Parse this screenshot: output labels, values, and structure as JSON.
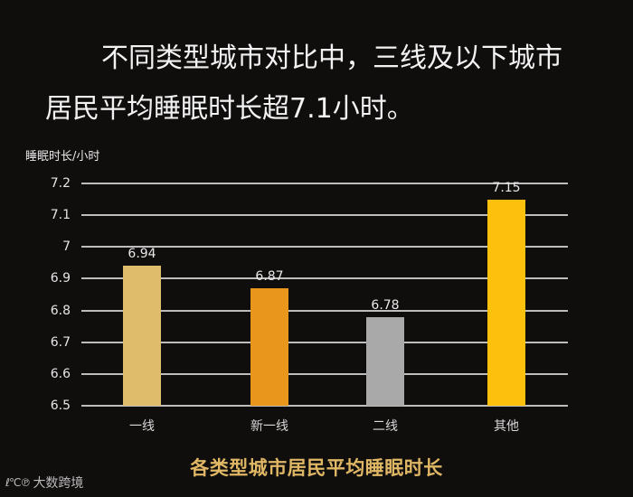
{
  "headline": {
    "line1": "不同类型城市对比中，三线及以下城市",
    "line2": "居民平均睡眠时长超7.1小时。"
  },
  "watermark": {
    "logo": "ℓ℃℗",
    "text": "大数跨境"
  },
  "chart_data": {
    "type": "bar",
    "title": "各类型城市居民平均睡眠时长",
    "xlabel": "",
    "ylabel": "睡眠时长/小时",
    "categories": [
      "一线",
      "新一线",
      "二线",
      "其他"
    ],
    "values": [
      6.94,
      6.87,
      6.78,
      7.15
    ],
    "value_labels": [
      "6.94",
      "6.87",
      "6.78",
      "7.15"
    ],
    "bar_colors": [
      "#dfbb6c",
      "#e8961c",
      "#a9a9a9",
      "#fcc00d"
    ],
    "ylim": [
      6.5,
      7.2
    ],
    "yticks": [
      "7.2",
      "7.1",
      "7",
      "6.9",
      "6.8",
      "6.7",
      "6.6",
      "6.5"
    ],
    "ytick_values": [
      7.2,
      7.1,
      7.0,
      6.9,
      6.8,
      6.7,
      6.6,
      6.5
    ],
    "grid": true,
    "legend": null,
    "background": "#100d0d"
  }
}
